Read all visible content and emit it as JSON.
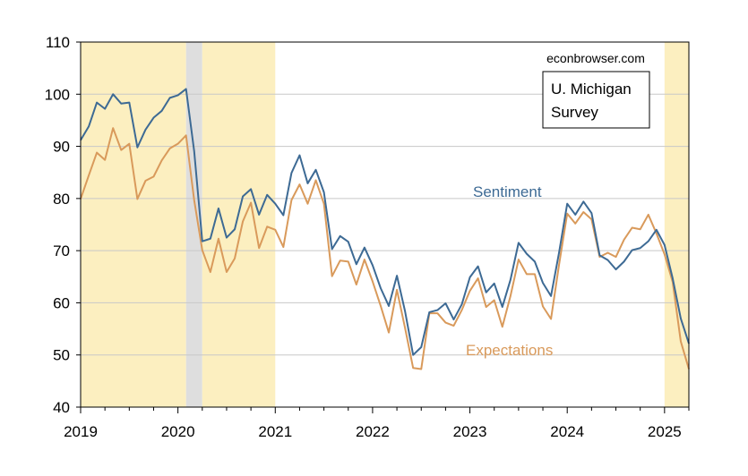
{
  "chart_data": {
    "type": "line",
    "source_note": "econbrowser.com",
    "legend_box": [
      "U. Michigan",
      "Survey"
    ],
    "xlim": [
      "2019-01",
      "2025-04"
    ],
    "ylim": [
      40,
      110
    ],
    "y_ticks": [
      40,
      50,
      60,
      70,
      80,
      90,
      100,
      110
    ],
    "x_ticks": [
      {
        "date": "2019-01",
        "label": "2019"
      },
      {
        "date": "2020-01",
        "label": "2020"
      },
      {
        "date": "2021-01",
        "label": "2021"
      },
      {
        "date": "2022-01",
        "label": "2022"
      },
      {
        "date": "2023-01",
        "label": "2023"
      },
      {
        "date": "2024-01",
        "label": "2024"
      },
      {
        "date": "2025-01",
        "label": "2025"
      }
    ],
    "grid": "horizontal",
    "colors": {
      "sentiment": "#3d6a94",
      "expectations": "#d99a5b",
      "shade_yellow": "#fcefc0",
      "shade_gray": "#dedede"
    },
    "shaded_periods": [
      {
        "start": "2019-01",
        "end": "2020-02",
        "color": "yellow"
      },
      {
        "start": "2020-02",
        "end": "2020-04",
        "color": "gray"
      },
      {
        "start": "2020-04",
        "end": "2021-01",
        "color": "yellow"
      },
      {
        "start": "2025-01",
        "end": "2025-04",
        "color": "yellow"
      }
    ],
    "x_start": "2019-01",
    "series": [
      {
        "name": "Sentiment",
        "values": [
          91.2,
          93.8,
          98.4,
          97.2,
          100.0,
          98.2,
          98.4,
          89.8,
          93.2,
          95.5,
          96.8,
          99.3,
          99.8,
          101.0,
          89.1,
          71.8,
          72.3,
          78.1,
          72.5,
          74.1,
          80.4,
          81.8,
          76.9,
          80.7,
          79.0,
          76.8,
          84.9,
          88.3,
          82.9,
          85.5,
          81.2,
          70.3,
          72.8,
          71.7,
          67.4,
          70.6,
          67.2,
          62.8,
          59.4,
          65.2,
          58.4,
          50.0,
          51.5,
          58.2,
          58.6,
          59.9,
          56.8,
          59.7,
          64.9,
          67.0,
          62.0,
          63.7,
          59.2,
          64.4,
          71.5,
          69.4,
          67.9,
          63.8,
          61.3,
          69.7,
          79.0,
          76.9,
          79.4,
          77.2,
          69.1,
          68.2,
          66.4,
          67.9,
          70.1,
          70.5,
          71.8,
          74.0,
          71.1,
          64.7,
          57.0,
          52.2
        ]
      },
      {
        "name": "Expectations",
        "values": [
          79.9,
          84.4,
          88.8,
          87.4,
          93.5,
          89.3,
          90.5,
          79.9,
          83.4,
          84.2,
          87.3,
          89.6,
          90.5,
          92.1,
          79.7,
          70.1,
          65.9,
          72.3,
          65.9,
          68.5,
          75.6,
          79.2,
          70.5,
          74.6,
          74.0,
          70.7,
          79.7,
          82.7,
          79.0,
          83.5,
          79.0,
          65.1,
          68.1,
          67.9,
          63.5,
          68.3,
          64.1,
          59.4,
          54.3,
          62.5,
          55.2,
          47.5,
          47.3,
          58.0,
          58.0,
          56.2,
          55.6,
          58.6,
          62.3,
          64.7,
          59.2,
          60.5,
          55.4,
          61.3,
          68.3,
          65.5,
          65.5,
          59.3,
          56.9,
          67.4,
          77.1,
          75.2,
          77.4,
          76.0,
          68.8,
          69.6,
          68.8,
          72.1,
          74.4,
          74.1,
          76.9,
          73.3,
          69.3,
          64.0,
          52.6,
          47.3
        ]
      }
    ]
  }
}
